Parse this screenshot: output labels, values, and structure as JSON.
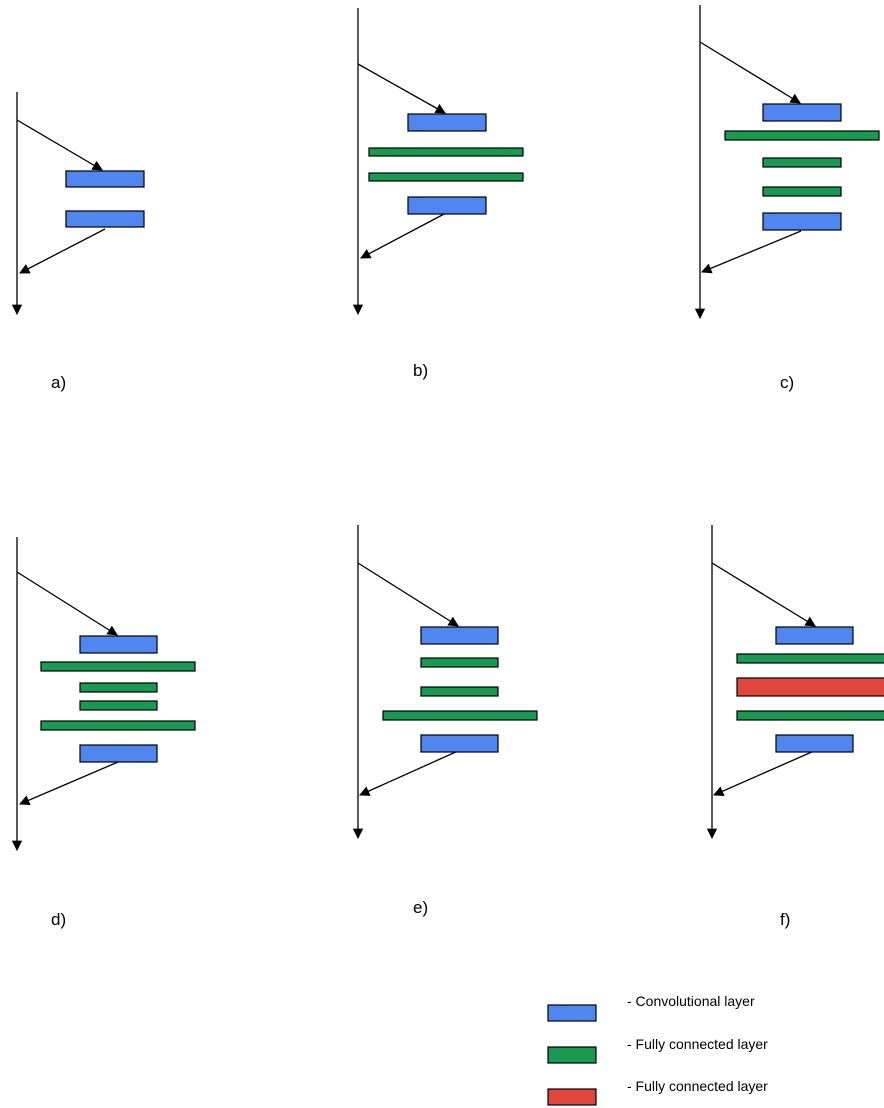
{
  "colors": {
    "conv": "#4f86f0",
    "fc": "#1a9950",
    "fc_alt": "#e0473c",
    "line": "#000000"
  },
  "panels": [
    {
      "label": "a)",
      "layers": [
        "conv",
        "conv"
      ]
    },
    {
      "label": "b)",
      "layers": [
        "conv",
        "fc-wide",
        "fc-wide",
        "conv"
      ]
    },
    {
      "label": "c)",
      "layers": [
        "conv",
        "fc-wide",
        "fc",
        "fc",
        "conv"
      ]
    },
    {
      "label": "d)",
      "layers": [
        "conv",
        "fc-wide",
        "fc",
        "fc",
        "fc-wide",
        "conv"
      ]
    },
    {
      "label": "e)",
      "layers": [
        "conv",
        "fc",
        "fc",
        "fc-wide",
        "conv"
      ]
    },
    {
      "label": "f)",
      "layers": [
        "conv",
        "fc-wide",
        "fc-alt-wide",
        "fc-wide",
        "conv"
      ]
    }
  ],
  "legend": [
    {
      "kind": "conv",
      "text": "- Convolutional layer"
    },
    {
      "kind": "fc",
      "text": "- Fully connected layer"
    },
    {
      "kind": "fc_alt",
      "text": "- Fully connected layer"
    }
  ]
}
